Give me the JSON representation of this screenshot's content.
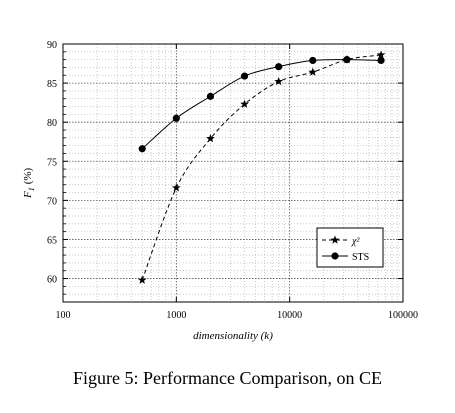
{
  "chart_data": {
    "type": "line",
    "xlabel": "dimensionality (k)",
    "ylabel_main": "F",
    "ylabel_sub": "1",
    "ylabel_unit": "(%)",
    "xscale": "log",
    "xlim": [
      100,
      100000
    ],
    "ylim": [
      57,
      90
    ],
    "xticks": [
      100,
      1000,
      10000,
      100000
    ],
    "xtick_labels": [
      "100",
      "1000",
      "10000",
      "100000"
    ],
    "yticks": [
      60,
      65,
      70,
      75,
      80,
      85,
      90
    ],
    "ytick_labels": [
      "60",
      "65",
      "70",
      "75",
      "80",
      "85",
      "90"
    ],
    "grid": true,
    "legend_position": "lower-right",
    "series": [
      {
        "name": "χ²",
        "line_style": "dashed",
        "marker": "star",
        "color": "#000000",
        "x": [
          500,
          1000,
          2000,
          4000,
          8000,
          16000,
          32000,
          64000
        ],
        "y": [
          59.8,
          71.6,
          77.9,
          82.3,
          85.2,
          86.4,
          88.0,
          88.6
        ]
      },
      {
        "name": "STS",
        "line_style": "solid",
        "marker": "circle",
        "color": "#000000",
        "x": [
          500,
          1000,
          2000,
          4000,
          8000,
          16000,
          32000,
          64000
        ],
        "y": [
          76.6,
          80.5,
          83.3,
          85.9,
          87.1,
          87.9,
          88.0,
          87.9
        ]
      }
    ]
  },
  "caption": "Figure 5: Performance Comparison, on CE"
}
